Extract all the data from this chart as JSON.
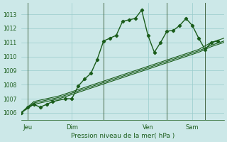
{
  "xlabel": "Pression niveau de la mer( hPa )",
  "bg_color": "#cce8e8",
  "grid_color": "#99cccc",
  "line_color": "#1a5c1a",
  "label_color": "#1a5c1a",
  "ylim": [
    1005.5,
    1013.8
  ],
  "yticks": [
    1006,
    1007,
    1008,
    1009,
    1010,
    1011,
    1012,
    1013
  ],
  "xlim": [
    0,
    16
  ],
  "day_ticks": [
    0.5,
    4,
    10,
    13.5
  ],
  "day_labels": [
    "Jeu",
    "Dim",
    "Ven",
    "Sam"
  ],
  "vline_positions": [
    0.5,
    6.5,
    11.5,
    14.5
  ],
  "series_plain": [
    [
      1006.0,
      1006.8,
      1007.0,
      1007.2,
      1007.5,
      1007.8,
      1008.1,
      1008.4,
      1008.7,
      1009.0,
      1009.3,
      1009.6,
      1009.9,
      1010.2,
      1010.5,
      1011.0,
      1011.3
    ],
    [
      1006.0,
      1006.7,
      1006.9,
      1007.1,
      1007.4,
      1007.7,
      1008.0,
      1008.3,
      1008.6,
      1008.9,
      1009.2,
      1009.5,
      1009.8,
      1010.1,
      1010.4,
      1010.8,
      1011.1
    ],
    [
      1006.0,
      1006.6,
      1006.8,
      1007.0,
      1007.3,
      1007.6,
      1007.9,
      1008.2,
      1008.5,
      1008.8,
      1009.1,
      1009.4,
      1009.7,
      1010.0,
      1010.3,
      1010.7,
      1011.0
    ]
  ],
  "series_marker": {
    "x": [
      0,
      0.5,
      1.0,
      1.5,
      2.0,
      2.5,
      3.5,
      4.0,
      4.5,
      5.0,
      5.5,
      6.0,
      6.5,
      7.0,
      7.5,
      8.0,
      8.5,
      9.0,
      9.5,
      10.0,
      10.5,
      11.0,
      11.5,
      12.0,
      12.5,
      13.0,
      13.5,
      14.0,
      14.5,
      15.0,
      15.5
    ],
    "y": [
      1006.0,
      1006.4,
      1006.6,
      1006.4,
      1006.6,
      1006.8,
      1007.0,
      1007.0,
      1007.9,
      1008.4,
      1008.8,
      1009.8,
      1011.1,
      1011.3,
      1011.5,
      1012.5,
      1012.6,
      1012.7,
      1013.3,
      1011.5,
      1010.3,
      1011.0,
      1011.8,
      1011.85,
      1012.2,
      1012.7,
      1012.2,
      1011.3,
      1010.5,
      1011.0,
      1011.1
    ]
  },
  "figsize": [
    3.2,
    2.0
  ],
  "dpi": 100
}
